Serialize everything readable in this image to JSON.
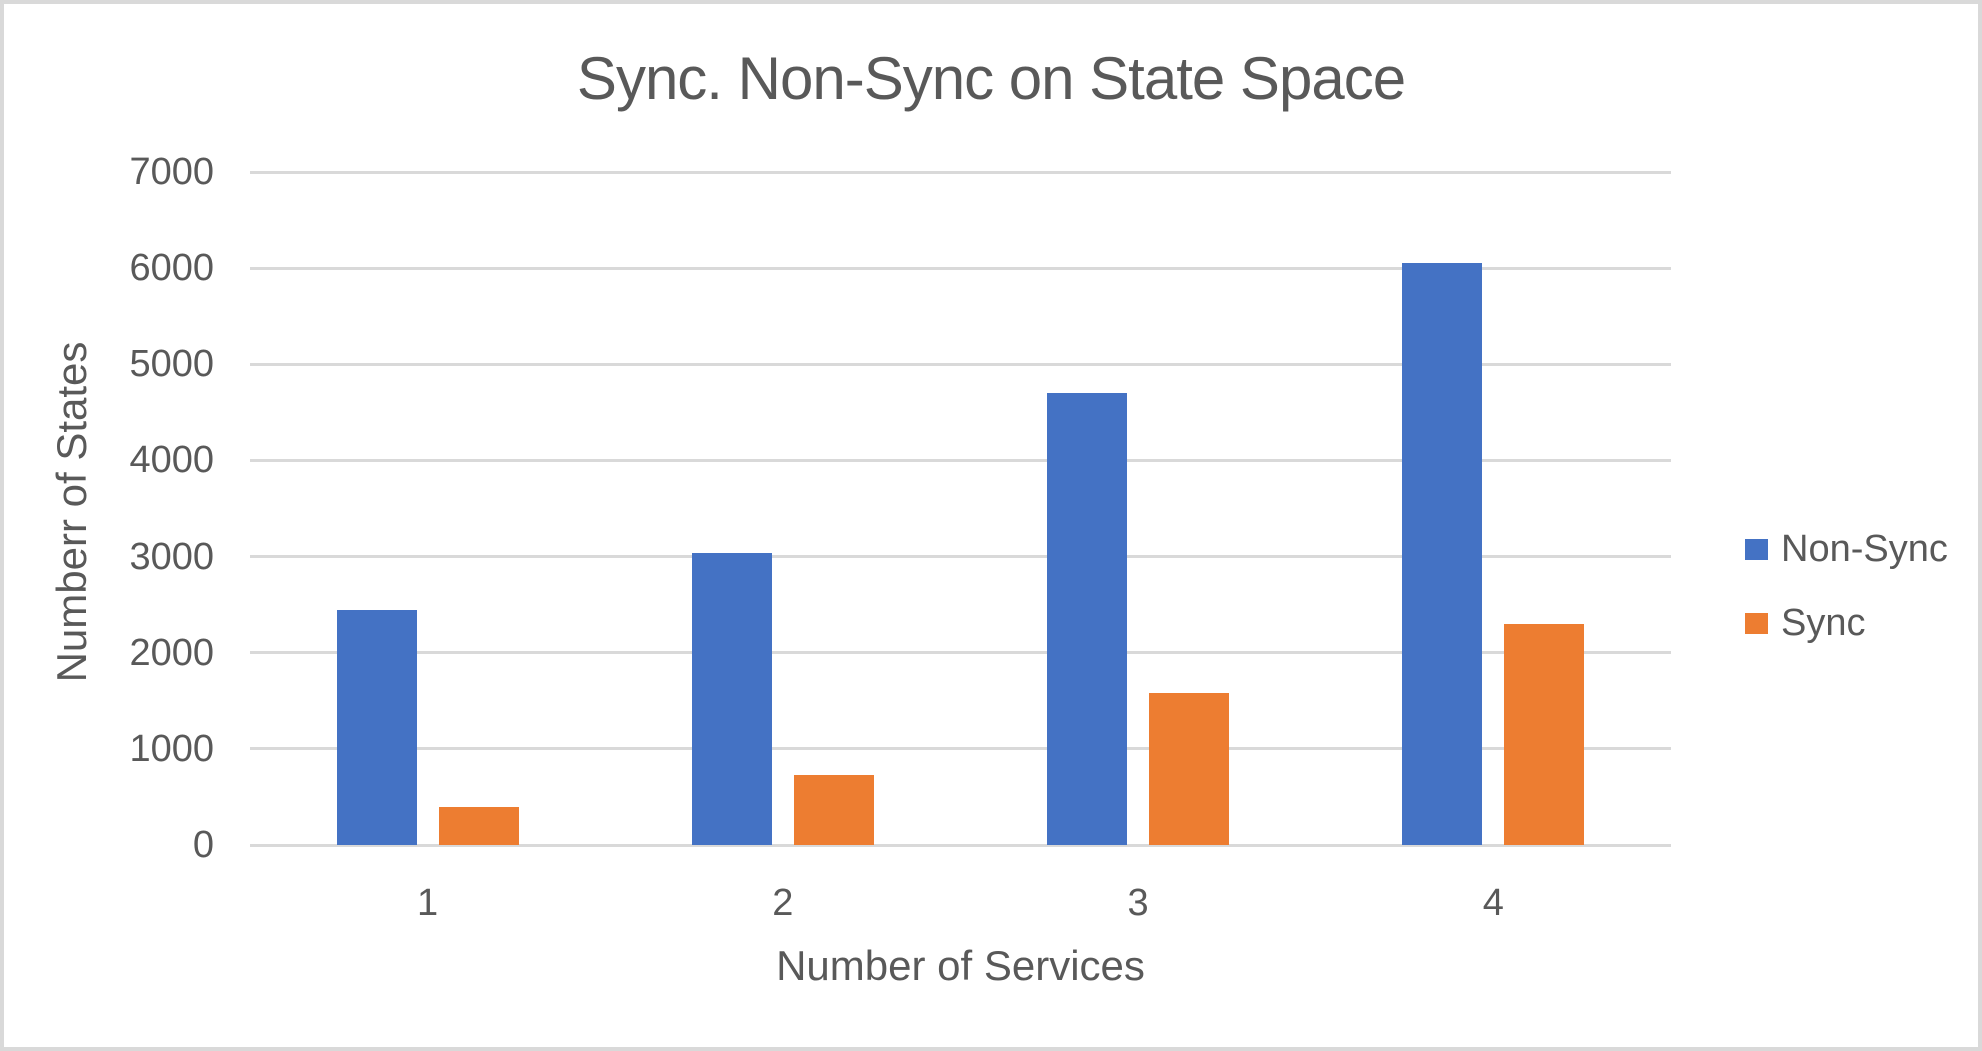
{
  "title": "Sync. Non-Sync on State Space",
  "colors": {
    "text": "#595959",
    "grid": "#D9D9D9",
    "frame": "#D9D9D9",
    "background": "#FFFFFF",
    "non_sync": "#4472C4",
    "sync": "#ED7D31"
  },
  "chart_data": {
    "type": "bar",
    "title": "Sync. Non-Sync on State Space",
    "xlabel": "Number of Services",
    "ylabel": "Numberr of States",
    "categories": [
      "1",
      "2",
      "3",
      "4"
    ],
    "series": [
      {
        "name": "Non-Sync",
        "color": "#4472C4",
        "values": [
          2440,
          3040,
          4700,
          6050
        ]
      },
      {
        "name": "Sync",
        "color": "#ED7D31",
        "values": [
          400,
          730,
          1580,
          2300
        ]
      }
    ],
    "ylim": [
      0,
      7000
    ],
    "ytick_step": 1000,
    "ytick_labels": [
      "0",
      "1000",
      "2000",
      "3000",
      "4000",
      "5000",
      "6000",
      "7000"
    ],
    "grid": true,
    "legend_position": "right",
    "legend_labels": [
      "Non-Sync",
      "Sync"
    ]
  }
}
